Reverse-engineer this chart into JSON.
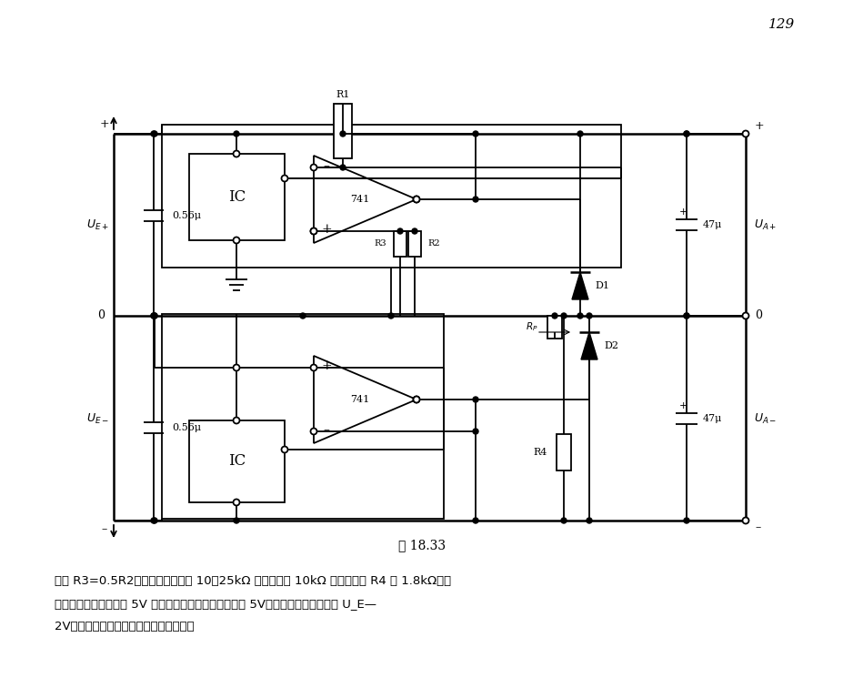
{
  "page_number": "129",
  "figure_label": "图 18.33",
  "caption_line1": "値取 R3=0.5R2。电位器电阵値在 10～25kΩ 之间。当取 10kΩ 时限流电阵 R4 取 1.8kΩ。当",
  "caption_line2": "集成稳压电路稳压値为 5V 时，该电路输出最低电压也为 5V。最高输出电压相当于 U_E—",
  "caption_line3": "2V，故同集成电路允许的输入电压有关。",
  "bg_color": "#ffffff",
  "line_color": "#000000",
  "lw": 1.3,
  "fig_width": 9.28,
  "fig_height": 7.67,
  "dpi": 100
}
